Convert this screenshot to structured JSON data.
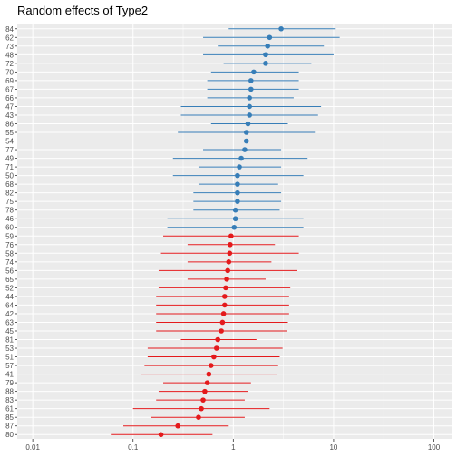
{
  "chart_data": {
    "type": "scatter",
    "title": "Random effects of Type2",
    "xlabel": "",
    "ylabel": "",
    "x_scale": "log10",
    "xlim": [
      0.007,
      150
    ],
    "x_ticks": [
      0.01,
      0.1,
      1,
      10,
      100
    ],
    "x_tick_labels": [
      "0.01",
      "0.1",
      "1",
      "10",
      "100"
    ],
    "grid": true,
    "legend": "none",
    "colors": {
      "positive": "#377eb8",
      "negative": "#e41a1c",
      "panel": "#ebebeb",
      "grid": "#ffffff"
    },
    "points": [
      {
        "label": "84",
        "estimate": 3.0,
        "lower": 0.9,
        "upper": 10.5,
        "group": "positive"
      },
      {
        "label": "62",
        "estimate": 2.3,
        "lower": 0.5,
        "upper": 11.5,
        "group": "positive"
      },
      {
        "label": "73",
        "estimate": 2.2,
        "lower": 0.7,
        "upper": 8.0,
        "group": "positive"
      },
      {
        "label": "48",
        "estimate": 2.1,
        "lower": 0.5,
        "upper": 10.0,
        "group": "positive"
      },
      {
        "label": "72",
        "estimate": 2.1,
        "lower": 0.8,
        "upper": 6.0,
        "group": "positive"
      },
      {
        "label": "70",
        "estimate": 1.6,
        "lower": 0.6,
        "upper": 4.5,
        "group": "positive"
      },
      {
        "label": "69",
        "estimate": 1.5,
        "lower": 0.55,
        "upper": 4.5,
        "group": "positive"
      },
      {
        "label": "67",
        "estimate": 1.5,
        "lower": 0.55,
        "upper": 4.5,
        "group": "positive"
      },
      {
        "label": "66",
        "estimate": 1.45,
        "lower": 0.55,
        "upper": 4.0,
        "group": "positive"
      },
      {
        "label": "47",
        "estimate": 1.45,
        "lower": 0.3,
        "upper": 7.5,
        "group": "positive"
      },
      {
        "label": "43",
        "estimate": 1.45,
        "lower": 0.3,
        "upper": 7.0,
        "group": "positive"
      },
      {
        "label": "86",
        "estimate": 1.4,
        "lower": 0.6,
        "upper": 3.5,
        "group": "positive"
      },
      {
        "label": "55",
        "estimate": 1.35,
        "lower": 0.28,
        "upper": 6.5,
        "group": "positive"
      },
      {
        "label": "54",
        "estimate": 1.35,
        "lower": 0.28,
        "upper": 6.5,
        "group": "positive"
      },
      {
        "label": "77",
        "estimate": 1.3,
        "lower": 0.5,
        "upper": 3.0,
        "group": "positive"
      },
      {
        "label": "49",
        "estimate": 1.2,
        "lower": 0.25,
        "upper": 5.5,
        "group": "positive"
      },
      {
        "label": "71",
        "estimate": 1.15,
        "lower": 0.45,
        "upper": 3.0,
        "group": "positive"
      },
      {
        "label": "50",
        "estimate": 1.1,
        "lower": 0.25,
        "upper": 5.0,
        "group": "positive"
      },
      {
        "label": "68",
        "estimate": 1.1,
        "lower": 0.45,
        "upper": 2.8,
        "group": "positive"
      },
      {
        "label": "82",
        "estimate": 1.1,
        "lower": 0.4,
        "upper": 3.0,
        "group": "positive"
      },
      {
        "label": "75",
        "estimate": 1.1,
        "lower": 0.4,
        "upper": 3.0,
        "group": "positive"
      },
      {
        "label": "78",
        "estimate": 1.05,
        "lower": 0.4,
        "upper": 2.9,
        "group": "positive"
      },
      {
        "label": "46",
        "estimate": 1.05,
        "lower": 0.22,
        "upper": 5.0,
        "group": "positive"
      },
      {
        "label": "60",
        "estimate": 1.02,
        "lower": 0.22,
        "upper": 5.0,
        "group": "positive"
      },
      {
        "label": "59",
        "estimate": 0.95,
        "lower": 0.2,
        "upper": 4.5,
        "group": "negative"
      },
      {
        "label": "76",
        "estimate": 0.93,
        "lower": 0.35,
        "upper": 2.6,
        "group": "negative"
      },
      {
        "label": "58",
        "estimate": 0.92,
        "lower": 0.19,
        "upper": 4.5,
        "group": "negative"
      },
      {
        "label": "74",
        "estimate": 0.9,
        "lower": 0.35,
        "upper": 2.4,
        "group": "negative"
      },
      {
        "label": "56",
        "estimate": 0.88,
        "lower": 0.18,
        "upper": 4.3,
        "group": "negative"
      },
      {
        "label": "65",
        "estimate": 0.86,
        "lower": 0.35,
        "upper": 2.1,
        "group": "negative"
      },
      {
        "label": "52",
        "estimate": 0.84,
        "lower": 0.18,
        "upper": 3.7,
        "group": "negative"
      },
      {
        "label": "44",
        "estimate": 0.82,
        "lower": 0.17,
        "upper": 3.6,
        "group": "negative"
      },
      {
        "label": "64",
        "estimate": 0.82,
        "lower": 0.17,
        "upper": 3.6,
        "group": "negative"
      },
      {
        "label": "42",
        "estimate": 0.8,
        "lower": 0.17,
        "upper": 3.6,
        "group": "negative"
      },
      {
        "label": "63",
        "estimate": 0.78,
        "lower": 0.17,
        "upper": 3.5,
        "group": "negative"
      },
      {
        "label": "45",
        "estimate": 0.76,
        "lower": 0.17,
        "upper": 3.4,
        "group": "negative"
      },
      {
        "label": "81",
        "estimate": 0.7,
        "lower": 0.3,
        "upper": 1.7,
        "group": "negative"
      },
      {
        "label": "53",
        "estimate": 0.68,
        "lower": 0.14,
        "upper": 3.1,
        "group": "negative"
      },
      {
        "label": "51",
        "estimate": 0.64,
        "lower": 0.14,
        "upper": 2.9,
        "group": "negative"
      },
      {
        "label": "57",
        "estimate": 0.6,
        "lower": 0.13,
        "upper": 2.8,
        "group": "negative"
      },
      {
        "label": "41",
        "estimate": 0.57,
        "lower": 0.12,
        "upper": 2.7,
        "group": "negative"
      },
      {
        "label": "79",
        "estimate": 0.55,
        "lower": 0.2,
        "upper": 1.5,
        "group": "negative"
      },
      {
        "label": "88",
        "estimate": 0.52,
        "lower": 0.18,
        "upper": 1.4,
        "group": "negative"
      },
      {
        "label": "83",
        "estimate": 0.5,
        "lower": 0.17,
        "upper": 1.3,
        "group": "negative"
      },
      {
        "label": "61",
        "estimate": 0.48,
        "lower": 0.1,
        "upper": 2.3,
        "group": "negative"
      },
      {
        "label": "85",
        "estimate": 0.45,
        "lower": 0.15,
        "upper": 1.3,
        "group": "negative"
      },
      {
        "label": "87",
        "estimate": 0.28,
        "lower": 0.08,
        "upper": 0.9,
        "group": "negative"
      },
      {
        "label": "80",
        "estimate": 0.19,
        "lower": 0.06,
        "upper": 0.62,
        "group": "negative"
      }
    ]
  }
}
